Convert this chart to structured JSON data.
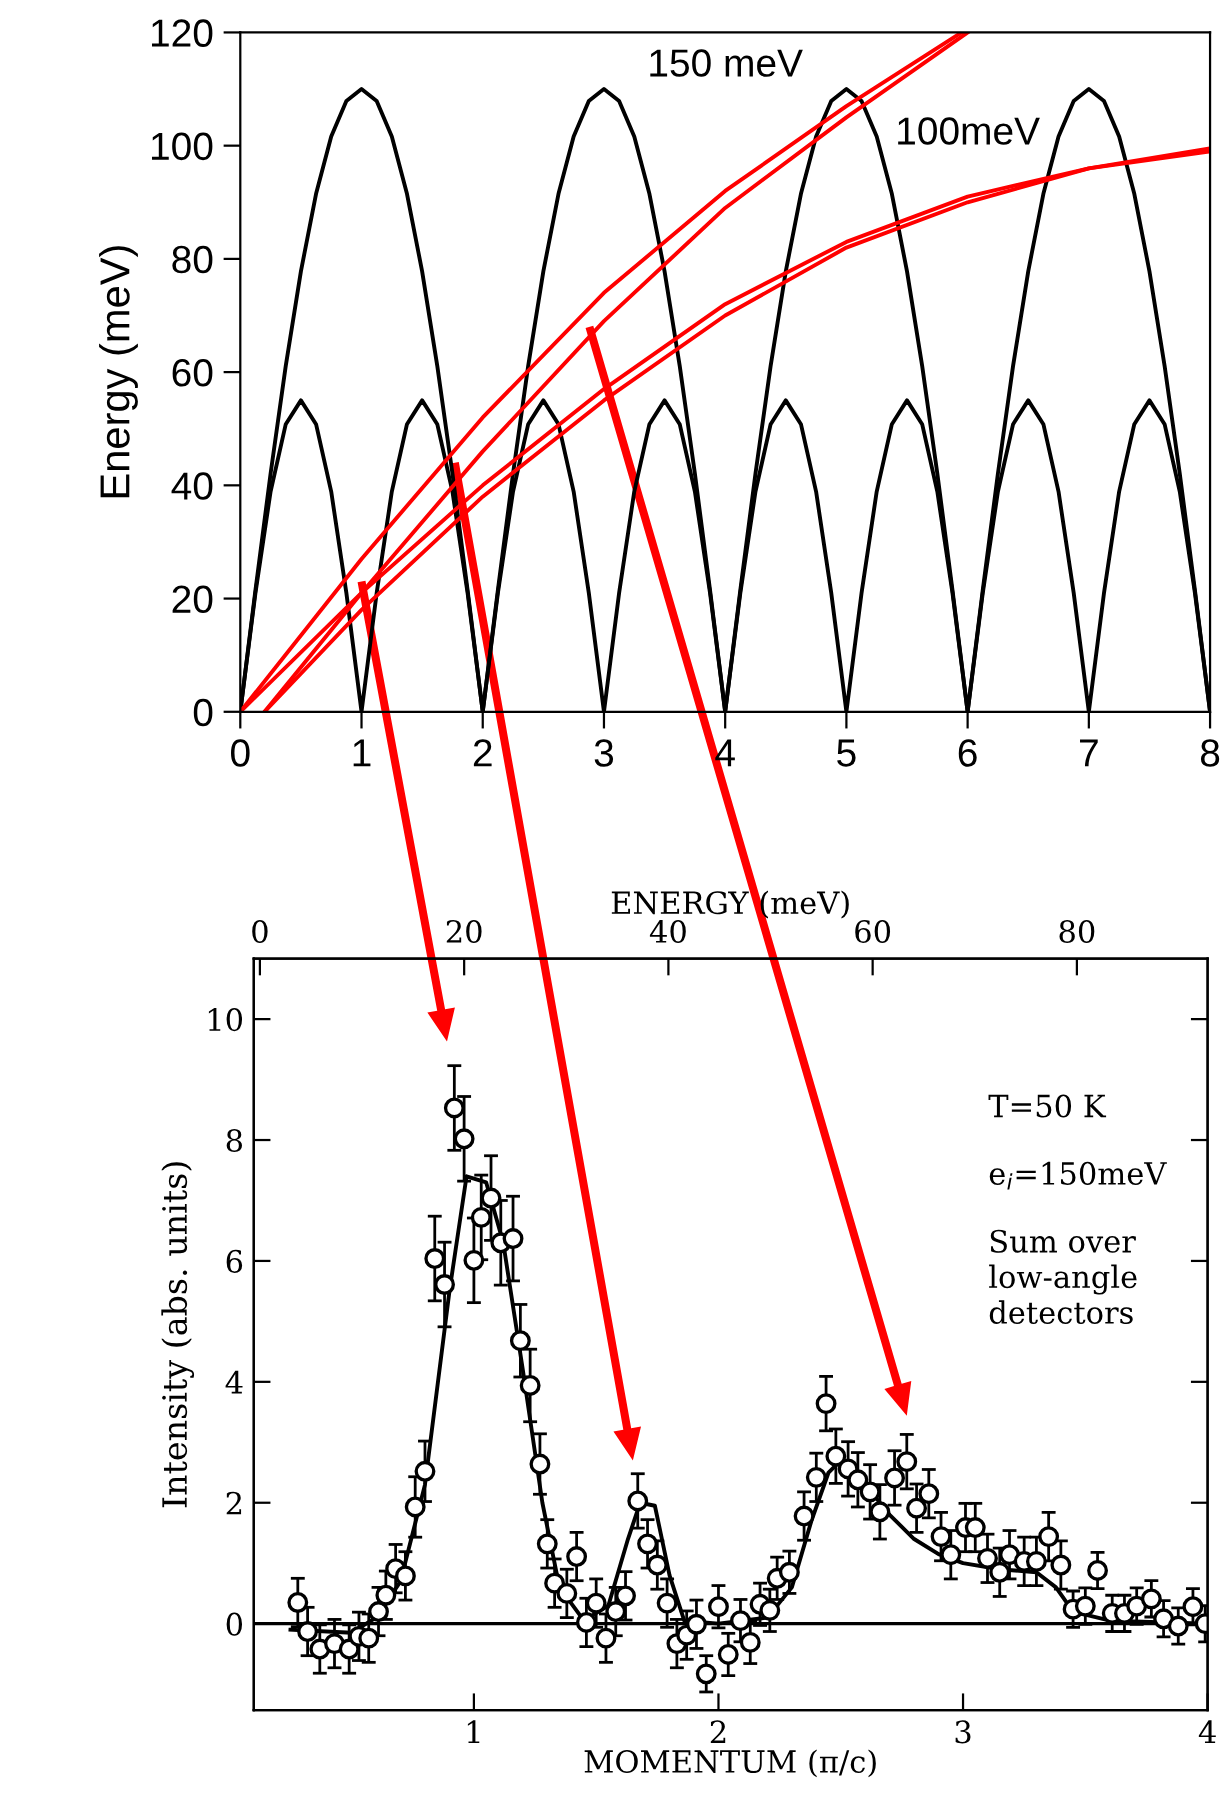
{
  "chart_data": [
    {
      "type": "line",
      "ylabel": "Energy (meV)",
      "xlim": [
        0,
        8
      ],
      "ylim": [
        0,
        120
      ],
      "xticks": [
        0,
        1,
        2,
        3,
        4,
        5,
        6,
        7,
        8
      ],
      "yticks": [
        0,
        20,
        40,
        60,
        80,
        100,
        120
      ],
      "grid": false,
      "legend": false,
      "marker": "none",
      "line_style": "solid",
      "x": [
        0,
        0.125,
        0.25,
        0.375,
        0.5,
        0.625,
        0.75,
        0.875,
        1,
        1.125,
        1.25,
        1.375,
        1.5,
        1.625,
        1.75,
        1.875,
        2,
        2.125,
        2.25,
        2.375,
        2.5,
        2.625,
        2.75,
        2.875,
        3,
        3.125,
        3.25,
        3.375,
        3.5,
        3.625,
        3.75,
        3.875,
        4,
        4.125,
        4.25,
        4.375,
        4.5,
        4.625,
        4.75,
        4.875,
        5,
        5.125,
        5.25,
        5.375,
        5.5,
        5.625,
        5.75,
        5.875,
        6,
        6.125,
        6.25,
        6.375,
        6.5,
        6.625,
        6.75,
        6.875,
        7,
        7.125,
        7.25,
        7.375,
        7.5,
        7.625,
        7.75,
        7.875,
        8
      ],
      "series": [
        {
          "color": "#000000",
          "values": [
            0,
            21.5,
            42.1,
            61.1,
            77.8,
            91.5,
            101.6,
            107.9,
            110,
            107.9,
            101.6,
            91.5,
            77.8,
            61.1,
            42.1,
            21.5,
            0,
            21.5,
            42.1,
            61.1,
            77.8,
            91.5,
            101.6,
            107.9,
            110,
            107.9,
            101.6,
            91.5,
            77.8,
            61.1,
            42.1,
            21.5,
            0,
            21.5,
            42.1,
            61.1,
            77.8,
            91.5,
            101.6,
            107.9,
            110,
            107.9,
            101.6,
            91.5,
            77.8,
            61.1,
            42.1,
            21.5,
            0,
            21.5,
            42.1,
            61.1,
            77.8,
            91.5,
            101.6,
            107.9,
            110,
            107.9,
            101.6,
            91.5,
            77.8,
            61.1,
            42.1,
            21.5,
            0
          ]
        },
        {
          "color": "#000000",
          "values": [
            0,
            21.0,
            38.9,
            50.8,
            55,
            50.8,
            38.9,
            21.0,
            0,
            21.0,
            38.9,
            50.8,
            55,
            50.8,
            38.9,
            21.0,
            0,
            21.0,
            38.9,
            50.8,
            55,
            50.8,
            38.9,
            21.0,
            0,
            21.0,
            38.9,
            50.8,
            55,
            50.8,
            38.9,
            21.0,
            0,
            21.0,
            38.9,
            50.8,
            55,
            50.8,
            38.9,
            21.0,
            0,
            21.0,
            38.9,
            50.8,
            55,
            50.8,
            38.9,
            21.0,
            0,
            21.0,
            38.9,
            50.8,
            55,
            50.8,
            38.9,
            21.0,
            0,
            21.0,
            38.9,
            50.8,
            55,
            50.8,
            38.9,
            21.0,
            0
          ]
        },
        {
          "color": "#ff0000",
          "x": [
            0,
            1,
            2,
            3,
            4,
            5,
            5.95
          ],
          "values": [
            0,
            27,
            52,
            74,
            92,
            107,
            120
          ]
        },
        {
          "color": "#ff0000",
          "x": [
            0.2,
            1,
            2,
            3,
            4,
            5,
            6
          ],
          "values": [
            0,
            21,
            46,
            69,
            89,
            105,
            120
          ]
        },
        {
          "color": "#ff0000",
          "x": [
            0,
            1,
            2,
            3,
            4,
            5,
            6,
            7,
            8
          ],
          "values": [
            0,
            21,
            40,
            57,
            72,
            83,
            91,
            96,
            99.5
          ]
        },
        {
          "color": "#ff0000",
          "x": [
            0.2,
            1,
            2,
            3,
            4,
            5,
            6,
            7,
            8
          ],
          "values": [
            0,
            18,
            38,
            55,
            70,
            82,
            90,
            96,
            99
          ]
        }
      ],
      "annotations": [
        "150 meV",
        "100meV"
      ]
    },
    {
      "type": "scatter",
      "xlabel": "MOMENTUM (π/c)",
      "ylabel": "Intensity (abs. units)",
      "x2label": "ENERGY (meV)",
      "xlim": [
        0.1,
        4
      ],
      "ylim": [
        -1.43,
        11
      ],
      "xticks": [
        1,
        2,
        3,
        4
      ],
      "yticks": [
        0,
        2,
        4,
        6,
        8,
        10
      ],
      "x2lim": [
        -0.6,
        92.8
      ],
      "x2ticks": [
        0,
        20,
        40,
        60,
        80
      ],
      "grid": false,
      "legend": false,
      "ref_lines": [
        {
          "axis": "y",
          "value": 0,
          "color": "#000000"
        }
      ],
      "series": [
        {
          "type": "scatter",
          "marker": "circle",
          "color": "#000000",
          "x": [
            0.28,
            0.32,
            0.37,
            0.43,
            0.49,
            0.53,
            0.57,
            0.61,
            0.64,
            0.68,
            0.72,
            0.76,
            0.8,
            0.84,
            0.88,
            0.92,
            0.96,
            1.0,
            1.03,
            1.07,
            1.11,
            1.16,
            1.19,
            1.23,
            1.27,
            1.3,
            1.33,
            1.38,
            1.42,
            1.46,
            1.5,
            1.54,
            1.58,
            1.62,
            1.67,
            1.71,
            1.75,
            1.79,
            1.83,
            1.87,
            1.91,
            1.95,
            2.0,
            2.04,
            2.09,
            2.13,
            2.17,
            2.21,
            2.24,
            2.29,
            2.35,
            2.4,
            2.44,
            2.48,
            2.53,
            2.57,
            2.62,
            2.66,
            2.72,
            2.77,
            2.81,
            2.86,
            2.91,
            2.95,
            3.01,
            3.05,
            3.1,
            3.15,
            3.19,
            3.25,
            3.3,
            3.35,
            3.4,
            3.45,
            3.5,
            3.55,
            3.61,
            3.66,
            3.71,
            3.77,
            3.82,
            3.88,
            3.94,
            3.99
          ],
          "values": [
            0.35,
            -0.13,
            -0.42,
            -0.33,
            -0.42,
            -0.21,
            -0.24,
            0.2,
            0.47,
            0.91,
            0.79,
            1.93,
            2.52,
            6.04,
            5.61,
            8.53,
            8.02,
            6.01,
            6.72,
            7.04,
            6.3,
            6.37,
            4.68,
            3.94,
            2.64,
            1.32,
            0.67,
            0.5,
            1.11,
            0.02,
            0.34,
            -0.24,
            0.2,
            0.46,
            2.03,
            1.32,
            0.97,
            0.34,
            -0.33,
            -0.19,
            -0.01,
            -0.83,
            0.28,
            -0.51,
            0.05,
            -0.31,
            0.32,
            0.22,
            0.75,
            0.85,
            1.78,
            2.42,
            3.64,
            2.77,
            2.56,
            2.38,
            2.18,
            1.85,
            2.41,
            2.68,
            1.91,
            2.15,
            1.44,
            1.14,
            1.59,
            1.59,
            1.08,
            0.85,
            1.14,
            1.03,
            1.03,
            1.44,
            0.97,
            0.24,
            0.29,
            0.88,
            0.17,
            0.17,
            0.29,
            0.41,
            0.08,
            -0.04,
            0.28,
            0.0
          ],
          "errors": [
            0.4,
            0.4,
            0.4,
            0.4,
            0.4,
            0.4,
            0.4,
            0.4,
            0.4,
            0.4,
            0.4,
            0.5,
            0.5,
            0.7,
            0.7,
            0.7,
            0.7,
            0.7,
            0.7,
            0.7,
            0.7,
            0.7,
            0.6,
            0.6,
            0.5,
            0.4,
            0.4,
            0.4,
            0.4,
            0.4,
            0.4,
            0.4,
            0.4,
            0.4,
            0.45,
            0.4,
            0.4,
            0.4,
            0.4,
            0.4,
            0.4,
            0.3,
            0.35,
            0.35,
            0.35,
            0.35,
            0.35,
            0.35,
            0.35,
            0.35,
            0.4,
            0.4,
            0.45,
            0.45,
            0.45,
            0.45,
            0.45,
            0.45,
            0.45,
            0.45,
            0.4,
            0.4,
            0.4,
            0.4,
            0.4,
            0.4,
            0.4,
            0.4,
            0.4,
            0.4,
            0.4,
            0.4,
            0.4,
            0.3,
            0.3,
            0.3,
            0.3,
            0.3,
            0.3,
            0.3,
            0.3,
            0.3,
            0.3,
            0.3
          ]
        },
        {
          "type": "line",
          "marker": "none",
          "line_style": "solid",
          "color": "#000000",
          "x": [
            0.25,
            0.5,
            0.6,
            0.7,
            0.8,
            0.9,
            0.97,
            1.05,
            1.12,
            1.2,
            1.28,
            1.35,
            1.45,
            1.55,
            1.63,
            1.68,
            1.74,
            1.8,
            1.86,
            2.0,
            2.2,
            2.3,
            2.38,
            2.45,
            2.5,
            2.6,
            2.7,
            2.8,
            2.9,
            3.0,
            3.15,
            3.3,
            3.38,
            3.45,
            3.6,
            4.0
          ],
          "values": [
            -0.1,
            -0.15,
            0.1,
            0.7,
            2.3,
            5.5,
            7.4,
            7.3,
            6.3,
            4.2,
            2.0,
            0.6,
            0.05,
            0.3,
            1.4,
            2.0,
            1.95,
            0.8,
            0.05,
            0.0,
            0.1,
            0.6,
            1.7,
            2.5,
            2.7,
            2.3,
            1.8,
            1.4,
            1.15,
            1.0,
            0.9,
            0.85,
            0.6,
            0.2,
            0.05,
            0.0
          ]
        }
      ],
      "annotations": [
        "T=50 K",
        "e$_{i}$=150meV",
        "Sum over\nlow-angle\ndetectors"
      ]
    }
  ]
}
